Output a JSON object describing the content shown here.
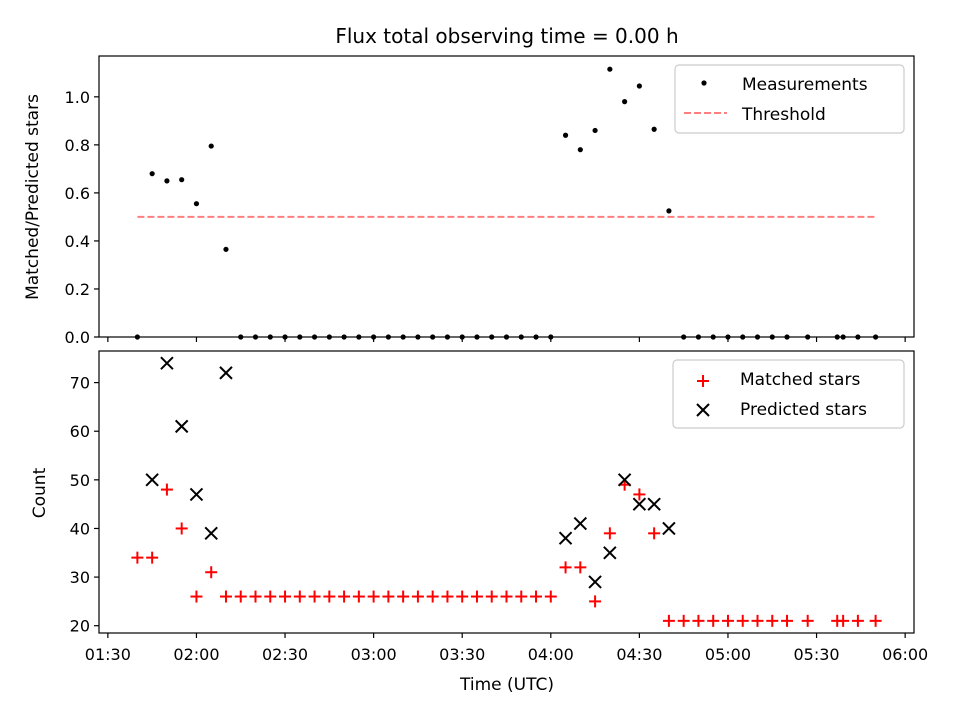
{
  "figure": {
    "title": "Flux total observing time = 0.00 h"
  },
  "chart_data": [
    {
      "type": "scatter",
      "ylabel": "Matched/Predicted stars",
      "ylim": [
        0,
        1.17
      ],
      "yticks": [
        "0.0",
        "0.2",
        "0.4",
        "0.6",
        "0.8",
        "1.0"
      ],
      "xlim": [
        "01:27",
        "06:03"
      ],
      "grid": false,
      "legend_position": "top-right",
      "legend": [
        "Measurements",
        "Threshold"
      ],
      "series": [
        {
          "name": "Measurements",
          "marker": "dot",
          "color": "#000000",
          "points": [
            [
              "01:40",
              0
            ],
            [
              "01:45",
              0.68
            ],
            [
              "01:50",
              0.65
            ],
            [
              "01:55",
              0.655
            ],
            [
              "02:00",
              0.555
            ],
            [
              "02:05",
              0.795
            ],
            [
              "02:10",
              0.365
            ],
            [
              "02:15",
              0
            ],
            [
              "02:20",
              0
            ],
            [
              "02:25",
              0
            ],
            [
              "02:30",
              0
            ],
            [
              "02:35",
              0
            ],
            [
              "02:40",
              0
            ],
            [
              "02:45",
              0
            ],
            [
              "02:50",
              0
            ],
            [
              "02:55",
              0
            ],
            [
              "03:00",
              0
            ],
            [
              "03:05",
              0
            ],
            [
              "03:10",
              0
            ],
            [
              "03:15",
              0
            ],
            [
              "03:20",
              0
            ],
            [
              "03:25",
              0
            ],
            [
              "03:30",
              0
            ],
            [
              "03:35",
              0
            ],
            [
              "03:40",
              0
            ],
            [
              "03:45",
              0
            ],
            [
              "03:50",
              0
            ],
            [
              "03:55",
              0
            ],
            [
              "04:00",
              0
            ],
            [
              "04:05",
              0.84
            ],
            [
              "04:10",
              0.78
            ],
            [
              "04:15",
              0.86
            ],
            [
              "04:20",
              1.115
            ],
            [
              "04:25",
              0.98
            ],
            [
              "04:30",
              1.045
            ],
            [
              "04:35",
              0.865
            ],
            [
              "04:40",
              0.525
            ],
            [
              "04:45",
              0
            ],
            [
              "04:50",
              0
            ],
            [
              "04:55",
              0
            ],
            [
              "05:00",
              0
            ],
            [
              "05:05",
              0
            ],
            [
              "05:10",
              0
            ],
            [
              "05:15",
              0
            ],
            [
              "05:20",
              0
            ],
            [
              "05:27",
              0
            ],
            [
              "05:37",
              0
            ],
            [
              "05:39",
              0
            ],
            [
              "05:44",
              0
            ],
            [
              "05:50",
              0
            ]
          ]
        },
        {
          "name": "Threshold",
          "style": "dashed-line",
          "color": "#ff7f7f",
          "points": [
            [
              "01:40",
              0.5
            ],
            [
              "05:50",
              0.5
            ]
          ]
        }
      ]
    },
    {
      "type": "scatter",
      "ylabel": "Count",
      "xlabel": "Time (UTC)",
      "ylim": [
        18.5,
        76.5
      ],
      "yticks": [
        "20",
        "30",
        "40",
        "50",
        "60",
        "70"
      ],
      "xlim": [
        "01:27",
        "06:03"
      ],
      "xticks": [
        "01:30",
        "02:00",
        "02:30",
        "03:00",
        "03:30",
        "04:00",
        "04:30",
        "05:00",
        "05:30",
        "06:00"
      ],
      "grid": false,
      "legend_position": "top-right",
      "legend": [
        "Matched stars",
        "Predicted stars"
      ],
      "series": [
        {
          "name": "Matched stars",
          "marker": "plus",
          "color": "#ff0000",
          "points": [
            [
              "01:40",
              34
            ],
            [
              "01:45",
              34
            ],
            [
              "01:50",
              48
            ],
            [
              "01:55",
              40
            ],
            [
              "02:00",
              26
            ],
            [
              "02:05",
              31
            ],
            [
              "02:10",
              26
            ],
            [
              "02:15",
              26
            ],
            [
              "02:20",
              26
            ],
            [
              "02:25",
              26
            ],
            [
              "02:30",
              26
            ],
            [
              "02:35",
              26
            ],
            [
              "02:40",
              26
            ],
            [
              "02:45",
              26
            ],
            [
              "02:50",
              26
            ],
            [
              "02:55",
              26
            ],
            [
              "03:00",
              26
            ],
            [
              "03:05",
              26
            ],
            [
              "03:10",
              26
            ],
            [
              "03:15",
              26
            ],
            [
              "03:20",
              26
            ],
            [
              "03:25",
              26
            ],
            [
              "03:30",
              26
            ],
            [
              "03:35",
              26
            ],
            [
              "03:40",
              26
            ],
            [
              "03:45",
              26
            ],
            [
              "03:50",
              26
            ],
            [
              "03:55",
              26
            ],
            [
              "04:00",
              26
            ],
            [
              "04:05",
              32
            ],
            [
              "04:10",
              32
            ],
            [
              "04:15",
              25
            ],
            [
              "04:20",
              39
            ],
            [
              "04:25",
              49
            ],
            [
              "04:30",
              47
            ],
            [
              "04:35",
              39
            ],
            [
              "04:40",
              21
            ],
            [
              "04:45",
              21
            ],
            [
              "04:50",
              21
            ],
            [
              "04:55",
              21
            ],
            [
              "05:00",
              21
            ],
            [
              "05:05",
              21
            ],
            [
              "05:10",
              21
            ],
            [
              "05:15",
              21
            ],
            [
              "05:20",
              21
            ],
            [
              "05:27",
              21
            ],
            [
              "05:37",
              21
            ],
            [
              "05:39",
              21
            ],
            [
              "05:44",
              21
            ],
            [
              "05:50",
              21
            ]
          ]
        },
        {
          "name": "Predicted stars",
          "marker": "x",
          "color": "#000000",
          "points": [
            [
              "01:45",
              50
            ],
            [
              "01:50",
              74
            ],
            [
              "01:55",
              61
            ],
            [
              "02:00",
              47
            ],
            [
              "02:05",
              39
            ],
            [
              "02:10",
              72
            ],
            [
              "04:05",
              38
            ],
            [
              "04:10",
              41
            ],
            [
              "04:15",
              29
            ],
            [
              "04:20",
              35
            ],
            [
              "04:25",
              50
            ],
            [
              "04:30",
              45
            ],
            [
              "04:35",
              45
            ],
            [
              "04:40",
              40
            ]
          ]
        }
      ]
    }
  ]
}
